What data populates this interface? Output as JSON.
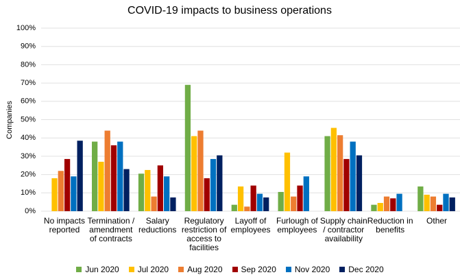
{
  "chart_data": {
    "type": "bar",
    "title": "COVID-19 impacts to business operations",
    "y_label": "Companies",
    "categories": [
      "No impacts reported",
      "Termination / amendment of contracts",
      "Salary reductions",
      "Regulatory restriction of access to facilities",
      "Layoff of employees",
      "Furlough of employees",
      "Supply chain / contractor availability",
      "Reduction in benefits",
      "Other"
    ],
    "series": [
      {
        "name": "Jun 2020",
        "color": "#70ad47",
        "values": [
          0,
          38,
          20.5,
          69,
          3.5,
          10.5,
          41,
          3.5,
          13.5
        ]
      },
      {
        "name": "Jul 2020",
        "color": "#ffc000",
        "values": [
          18,
          27,
          22.5,
          41,
          13.5,
          32,
          45.5,
          4.5,
          9
        ]
      },
      {
        "name": "Aug 2020",
        "color": "#ed7d31",
        "values": [
          22,
          44,
          8,
          44,
          2.5,
          8,
          41.5,
          8,
          8
        ]
      },
      {
        "name": "Sep 2020",
        "color": "#a00000",
        "values": [
          28.5,
          36,
          25,
          18,
          14,
          14,
          28.5,
          7,
          3.5
        ]
      },
      {
        "name": "Nov 2020",
        "color": "#0070c0",
        "values": [
          19,
          38,
          19,
          28.5,
          9.5,
          19,
          38,
          9.5,
          9.5
        ]
      },
      {
        "name": "Dec 2020",
        "color": "#002060",
        "values": [
          38.5,
          23,
          7.5,
          30.5,
          7.5,
          0,
          30.5,
          0,
          7.5
        ]
      }
    ],
    "ylim": [
      0,
      100
    ],
    "yticks": [
      {
        "value": 0,
        "label": "0%"
      },
      {
        "value": 10,
        "label": "10%"
      },
      {
        "value": 20,
        "label": "20%"
      },
      {
        "value": 30,
        "label": "30%"
      },
      {
        "value": 40,
        "label": "40%"
      },
      {
        "value": 50,
        "label": "50%"
      },
      {
        "value": 60,
        "label": "60%"
      },
      {
        "value": 70,
        "label": "70%"
      },
      {
        "value": 80,
        "label": "80%"
      },
      {
        "value": 90,
        "label": "90%"
      },
      {
        "value": 100,
        "label": "100%"
      }
    ],
    "grid": true,
    "legend": "bottom"
  }
}
